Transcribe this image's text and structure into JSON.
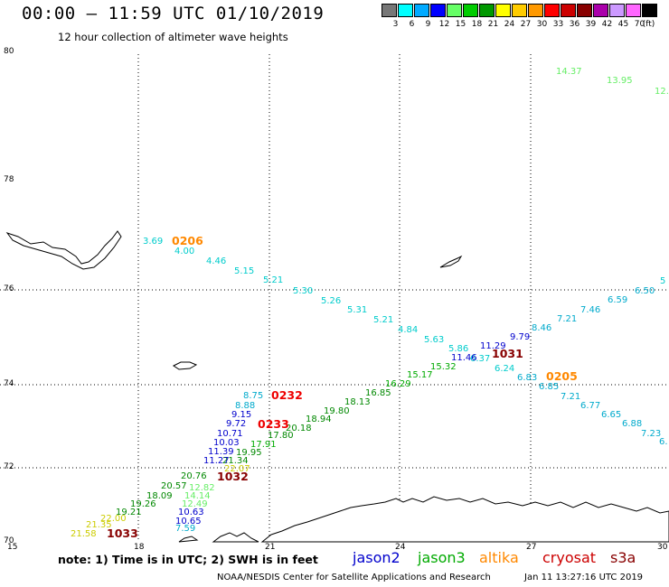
{
  "header": {
    "title": "00:00 – 11:59 UTC 01/10/2019",
    "subtitle": "12 hour collection of altimeter wave heights"
  },
  "color_scale": {
    "unit": "(ft)",
    "swatches": [
      {
        "label": "3",
        "color": "#777777"
      },
      {
        "label": "6",
        "color": "#00ffff"
      },
      {
        "label": "9",
        "color": "#00aaff"
      },
      {
        "label": "12",
        "color": "#0000ff"
      },
      {
        "label": "15",
        "color": "#66ff66"
      },
      {
        "label": "18",
        "color": "#00cc00"
      },
      {
        "label": "21",
        "color": "#009900"
      },
      {
        "label": "24",
        "color": "#ffff00"
      },
      {
        "label": "27",
        "color": "#ffcc00"
      },
      {
        "label": "30",
        "color": "#ff9900"
      },
      {
        "label": "33",
        "color": "#ff0000"
      },
      {
        "label": "36",
        "color": "#cc0000"
      },
      {
        "label": "39",
        "color": "#880000"
      },
      {
        "label": "42",
        "color": "#aa00aa"
      },
      {
        "label": "45",
        "color": "#cc99ff"
      },
      {
        "label": "70",
        "color": "#ff66ff"
      },
      {
        "label": "",
        "color": "#000000"
      }
    ]
  },
  "axes": {
    "lon_labels": [
      "15",
      "18",
      "21",
      "24",
      "27",
      "30"
    ],
    "lat_labels": [
      "70",
      "72",
      "74",
      "76",
      "78",
      "80"
    ]
  },
  "measurements": [
    {
      "v": "14.37",
      "c": "#66ee66"
    },
    {
      "v": "13.95",
      "c": "#66ee66"
    },
    {
      "v": "12.",
      "c": "#66ee66"
    },
    {
      "v": "3.69",
      "c": "#00cccc"
    },
    {
      "v": "4.00",
      "c": "#00cccc"
    },
    {
      "v": "4.46",
      "c": "#00cccc"
    },
    {
      "v": "5.15",
      "c": "#00cccc"
    },
    {
      "v": "5.21",
      "c": "#00cccc"
    },
    {
      "v": "5.30",
      "c": "#00cccc"
    },
    {
      "v": "5.26",
      "c": "#00cccc"
    },
    {
      "v": "5.31",
      "c": "#00cccc"
    },
    {
      "v": "5.21",
      "c": "#00cccc"
    },
    {
      "v": "4.84",
      "c": "#00cccc"
    },
    {
      "v": "5.63",
      "c": "#00cccc"
    },
    {
      "v": "5.86",
      "c": "#00cccc"
    },
    {
      "v": "6.37",
      "c": "#00cccc"
    },
    {
      "v": "6.24",
      "c": "#00cccc"
    },
    {
      "v": "6.83",
      "c": "#00aacc"
    },
    {
      "v": "6.85",
      "c": "#00aacc"
    },
    {
      "v": "7.21",
      "c": "#00aacc"
    },
    {
      "v": "6.77",
      "c": "#00aacc"
    },
    {
      "v": "6.65",
      "c": "#00aacc"
    },
    {
      "v": "6.88",
      "c": "#00aacc"
    },
    {
      "v": "7.23",
      "c": "#00aacc"
    },
    {
      "v": "6.",
      "c": "#00aacc"
    },
    {
      "v": "8.46",
      "c": "#00aacc"
    },
    {
      "v": "7.21",
      "c": "#00aacc"
    },
    {
      "v": "7.46",
      "c": "#00aacc"
    },
    {
      "v": "6.59",
      "c": "#00aacc"
    },
    {
      "v": "6.50",
      "c": "#00aacc"
    },
    {
      "v": "5",
      "c": "#00cccc"
    },
    {
      "v": "9.79",
      "c": "#0000cc"
    },
    {
      "v": "11.29",
      "c": "#0000cc"
    },
    {
      "v": "11.46",
      "c": "#0000cc"
    },
    {
      "v": "15.32",
      "c": "#00aa00"
    },
    {
      "v": "15.17",
      "c": "#00aa00"
    },
    {
      "v": "16.29",
      "c": "#00aa00"
    },
    {
      "v": "16.85",
      "c": "#008800"
    },
    {
      "v": "18.13",
      "c": "#008800"
    },
    {
      "v": "19.80",
      "c": "#008800"
    },
    {
      "v": "18.94",
      "c": "#008800"
    },
    {
      "v": "20.18",
      "c": "#008800"
    },
    {
      "v": "17.80",
      "c": "#008800"
    },
    {
      "v": "17.91",
      "c": "#00aa00"
    },
    {
      "v": "19.95",
      "c": "#008800"
    },
    {
      "v": "21.34",
      "c": "#008800"
    },
    {
      "v": "8.75",
      "c": "#00aacc"
    },
    {
      "v": "8.88",
      "c": "#00aacc"
    },
    {
      "v": "9.15",
      "c": "#0000cc"
    },
    {
      "v": "9.72",
      "c": "#0000cc"
    },
    {
      "v": "10.71",
      "c": "#0000cc"
    },
    {
      "v": "10.03",
      "c": "#0000cc"
    },
    {
      "v": "11.39",
      "c": "#0000cc"
    },
    {
      "v": "11.27",
      "c": "#0000cc"
    },
    {
      "v": "22.07",
      "c": "#cccc00"
    },
    {
      "v": "20.76",
      "c": "#008800"
    },
    {
      "v": "20.57",
      "c": "#008800"
    },
    {
      "v": "12.82",
      "c": "#66ee66"
    },
    {
      "v": "18.09",
      "c": "#008800"
    },
    {
      "v": "14.14",
      "c": "#66ee66"
    },
    {
      "v": "19.26",
      "c": "#008800"
    },
    {
      "v": "12.49",
      "c": "#66ee66"
    },
    {
      "v": "19.21",
      "c": "#008800"
    },
    {
      "v": "10.63",
      "c": "#0000cc"
    },
    {
      "v": "22.00",
      "c": "#cccc00"
    },
    {
      "v": "10.65",
      "c": "#0000cc"
    },
    {
      "v": "21.35",
      "c": "#cccc00"
    },
    {
      "v": "7.59",
      "c": "#00aacc"
    },
    {
      "v": "21.58",
      "c": "#cccc00"
    }
  ],
  "passes": [
    {
      "id": "0206",
      "c": "#ff8800"
    },
    {
      "id": "0232",
      "c": "#ee0000"
    },
    {
      "id": "0233",
      "c": "#ee0000"
    },
    {
      "id": "1031",
      "c": "#880000"
    },
    {
      "id": "0205",
      "c": "#ff8800"
    },
    {
      "id": "1032",
      "c": "#880000"
    },
    {
      "id": "1033",
      "c": "#880000"
    }
  ],
  "note": "note: 1) Time is in UTC; 2) SWH is in feet",
  "legend": [
    {
      "label": "jason2",
      "color": "#0000cc"
    },
    {
      "label": "jason3",
      "color": "#00aa00"
    },
    {
      "label": "altika",
      "color": "#ff8800"
    },
    {
      "label": "cryosat",
      "color": "#cc0000"
    },
    {
      "label": "s3a",
      "color": "#880000"
    }
  ],
  "footer": {
    "credit": "NOAA/NESDIS Center for Satellite Applications and Research",
    "timestamp": "Jan 11 13:27:16 UTC 2019"
  }
}
